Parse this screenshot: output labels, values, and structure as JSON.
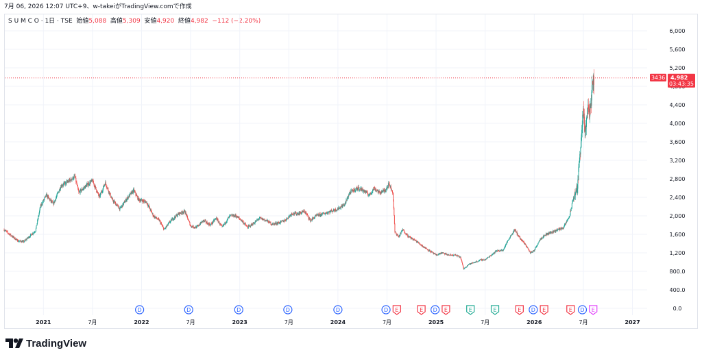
{
  "caption": "7月 06, 2026 12:07 UTC+9、w-takeiがTradingView.comで作成",
  "legend": {
    "symbol": "S U M C O · 1日 · TSE",
    "open_label": "始値",
    "open": "5,088",
    "high_label": "高値",
    "high": "5,309",
    "low_label": "安値",
    "low": "4,920",
    "close_label": "終値",
    "close": "4,982",
    "change": "−112 (−2.20%)"
  },
  "price_badge": {
    "left_tag": "3436",
    "value": "4,982",
    "countdown": "03:43:35"
  },
  "brand": "TradingView",
  "colors": {
    "up": "#26a69a",
    "down": "#ef5350",
    "price_line": "#f23645",
    "dividend": "#2962ff",
    "earnings": "#f23645",
    "earnings_green": "#22ab94",
    "earnings_pink": "#e040fb"
  },
  "chart_data": {
    "type": "candlestick",
    "y_ticks": [
      "6,000",
      "5,600",
      "5,200",
      "4,800",
      "4,400",
      "4,000",
      "3,600",
      "3,200",
      "2,800",
      "2,400",
      "2,000",
      "1,600",
      "1,200",
      "800.0",
      "400.0",
      "0.0"
    ],
    "y_tick_values": [
      6000,
      5600,
      5200,
      4800,
      4400,
      4000,
      3600,
      3200,
      2800,
      2400,
      2000,
      1600,
      1200,
      800,
      400,
      0
    ],
    "ylim": [
      0,
      6000
    ],
    "x_ticks": [
      {
        "label": "2021",
        "bold": true,
        "t": 2021.0
      },
      {
        "label": "7月",
        "bold": false,
        "t": 2021.5
      },
      {
        "label": "2022",
        "bold": true,
        "t": 2022.0
      },
      {
        "label": "7月",
        "bold": false,
        "t": 2022.5
      },
      {
        "label": "2023",
        "bold": true,
        "t": 2023.0
      },
      {
        "label": "7月",
        "bold": false,
        "t": 2023.5
      },
      {
        "label": "2024",
        "bold": true,
        "t": 2024.0
      },
      {
        "label": "7月",
        "bold": false,
        "t": 2024.5
      },
      {
        "label": "2025",
        "bold": true,
        "t": 2025.0
      },
      {
        "label": "7月",
        "bold": false,
        "t": 2025.5
      },
      {
        "label": "2026",
        "bold": true,
        "t": 2026.0
      },
      {
        "label": "7月",
        "bold": false,
        "t": 2026.5
      },
      {
        "label": "2027",
        "bold": true,
        "t": 2027.0
      }
    ],
    "xlim": [
      2020.6,
      2027.15
    ],
    "last_close": 4982,
    "price_path": [
      [
        2020.6,
        1700
      ],
      [
        2020.68,
        1560
      ],
      [
        2020.74,
        1460
      ],
      [
        2020.8,
        1440
      ],
      [
        2020.86,
        1560
      ],
      [
        2020.92,
        1680
      ],
      [
        2020.97,
        2200
      ],
      [
        2021.03,
        2450
      ],
      [
        2021.1,
        2250
      ],
      [
        2021.18,
        2650
      ],
      [
        2021.26,
        2750
      ],
      [
        2021.32,
        2850
      ],
      [
        2021.36,
        2500
      ],
      [
        2021.44,
        2660
      ],
      [
        2021.5,
        2760
      ],
      [
        2021.57,
        2400
      ],
      [
        2021.63,
        2720
      ],
      [
        2021.7,
        2350
      ],
      [
        2021.78,
        2150
      ],
      [
        2021.86,
        2400
      ],
      [
        2021.92,
        2550
      ],
      [
        2021.97,
        2350
      ],
      [
        2022.05,
        2300
      ],
      [
        2022.12,
        2000
      ],
      [
        2022.18,
        1900
      ],
      [
        2022.23,
        1700
      ],
      [
        2022.3,
        1900
      ],
      [
        2022.38,
        2050
      ],
      [
        2022.44,
        2100
      ],
      [
        2022.5,
        1780
      ],
      [
        2022.56,
        1750
      ],
      [
        2022.63,
        1900
      ],
      [
        2022.7,
        1800
      ],
      [
        2022.76,
        1950
      ],
      [
        2022.82,
        1750
      ],
      [
        2022.9,
        2000
      ],
      [
        2022.96,
        2000
      ],
      [
        2023.02,
        1900
      ],
      [
        2023.08,
        1750
      ],
      [
        2023.15,
        1850
      ],
      [
        2023.2,
        1950
      ],
      [
        2023.27,
        1900
      ],
      [
        2023.33,
        1820
      ],
      [
        2023.4,
        1850
      ],
      [
        2023.46,
        1900
      ],
      [
        2023.53,
        2050
      ],
      [
        2023.6,
        2050
      ],
      [
        2023.66,
        2100
      ],
      [
        2023.72,
        1900
      ],
      [
        2023.78,
        2000
      ],
      [
        2023.86,
        2050
      ],
      [
        2023.93,
        2100
      ],
      [
        2024.0,
        2150
      ],
      [
        2024.07,
        2250
      ],
      [
        2024.12,
        2500
      ],
      [
        2024.2,
        2600
      ],
      [
        2024.26,
        2550
      ],
      [
        2024.32,
        2450
      ],
      [
        2024.37,
        2600
      ],
      [
        2024.42,
        2500
      ],
      [
        2024.48,
        2550
      ],
      [
        2024.52,
        2700
      ],
      [
        2024.56,
        2500
      ],
      [
        2024.58,
        1650
      ],
      [
        2024.62,
        1550
      ],
      [
        2024.66,
        1700
      ],
      [
        2024.72,
        1550
      ],
      [
        2024.8,
        1450
      ],
      [
        2024.86,
        1350
      ],
      [
        2024.93,
        1250
      ],
      [
        2025.0,
        1150
      ],
      [
        2025.06,
        1200
      ],
      [
        2025.13,
        1150
      ],
      [
        2025.2,
        1150
      ],
      [
        2025.25,
        1100
      ],
      [
        2025.28,
        850
      ],
      [
        2025.33,
        950
      ],
      [
        2025.4,
        1000
      ],
      [
        2025.46,
        1050
      ],
      [
        2025.5,
        1050
      ],
      [
        2025.56,
        1150
      ],
      [
        2025.62,
        1250
      ],
      [
        2025.68,
        1250
      ],
      [
        2025.74,
        1500
      ],
      [
        2025.8,
        1700
      ],
      [
        2025.86,
        1500
      ],
      [
        2025.92,
        1350
      ],
      [
        2025.96,
        1200
      ],
      [
        2026.0,
        1250
      ],
      [
        2026.06,
        1500
      ],
      [
        2026.12,
        1600
      ],
      [
        2026.18,
        1650
      ],
      [
        2026.24,
        1700
      ],
      [
        2026.3,
        1750
      ],
      [
        2026.36,
        2000
      ],
      [
        2026.4,
        2400
      ],
      [
        2026.44,
        2600
      ],
      [
        2026.46,
        3200
      ],
      [
        2026.48,
        3800
      ],
      [
        2026.5,
        4200
      ],
      [
        2026.52,
        3700
      ],
      [
        2026.54,
        4300
      ],
      [
        2026.56,
        4200
      ],
      [
        2026.58,
        4500
      ],
      [
        2026.6,
        4900
      ],
      [
        2026.61,
        4982
      ]
    ],
    "markers": [
      {
        "type": "D",
        "t": 2021.98,
        "label": "D"
      },
      {
        "type": "D",
        "t": 2022.48,
        "label": "D"
      },
      {
        "type": "D",
        "t": 2022.99,
        "label": "D"
      },
      {
        "type": "D",
        "t": 2023.49,
        "label": "D"
      },
      {
        "type": "D",
        "t": 2024.0,
        "label": "D"
      },
      {
        "type": "D",
        "t": 2024.49,
        "label": "D"
      },
      {
        "type": "E",
        "t": 2024.6,
        "label": "E"
      },
      {
        "type": "E",
        "t": 2024.85,
        "label": "E"
      },
      {
        "type": "D",
        "t": 2024.99,
        "label": "D"
      },
      {
        "type": "E",
        "t": 2025.1,
        "label": "E"
      },
      {
        "type": "Eg",
        "t": 2025.35,
        "label": "E"
      },
      {
        "type": "Eg",
        "t": 2025.6,
        "label": "E"
      },
      {
        "type": "E",
        "t": 2025.85,
        "label": "E"
      },
      {
        "type": "D",
        "t": 2025.99,
        "label": "D"
      },
      {
        "type": "E",
        "t": 2026.1,
        "label": "E"
      },
      {
        "type": "E",
        "t": 2026.37,
        "label": "E"
      },
      {
        "type": "D",
        "t": 2026.49,
        "label": "D"
      },
      {
        "type": "Ep",
        "t": 2026.6,
        "label": "E"
      }
    ]
  }
}
